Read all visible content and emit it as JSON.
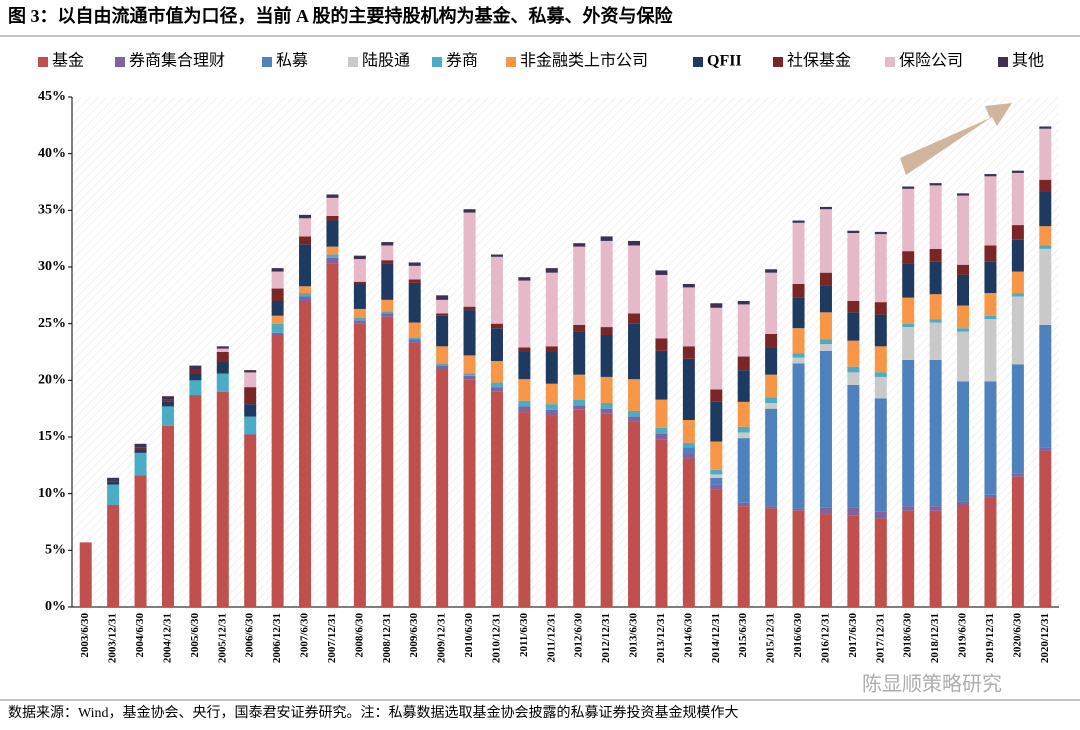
{
  "chart_data": {
    "type": "stacked-bar",
    "title": "图 3：以自由流通市值为口径，当前 A 股的主要持股机构为基金、私募、外资与保险",
    "source": "数据来源：Wind，基金协会、央行，国泰君安证券研究。注：私募数据选取基金协会披露的私募证券投资基金规模作大",
    "watermark": "陈显顺策略研究",
    "categories": [
      "2003/6/30",
      "2003/12/31",
      "2004/6/30",
      "2004/12/31",
      "2005/6/30",
      "2005/12/31",
      "2006/6/30",
      "2006/12/31",
      "2007/6/30",
      "2007/12/31",
      "2008/6/30",
      "2008/12/31",
      "2009/6/30",
      "2009/12/31",
      "2010/6/30",
      "2010/12/31",
      "2011/6/30",
      "2011/12/31",
      "2012/6/30",
      "2012/12/31",
      "2013/6/30",
      "2013/12/31",
      "2014/6/30",
      "2014/12/31",
      "2015/6/30",
      "2015/12/31",
      "2016/6/30",
      "2016/12/31",
      "2017/6/30",
      "2017/12/31",
      "2018/6/30",
      "2018/12/31",
      "2019/6/30",
      "2019/12/31",
      "2020/6/30",
      "2020/12/31"
    ],
    "series": [
      {
        "name": "基金",
        "color": "#c0504d",
        "values": [
          5.7,
          9.0,
          11.6,
          16.0,
          18.7,
          19.0,
          15.2,
          24.0,
          27.0,
          30.3,
          25.0,
          25.6,
          23.3,
          21.0,
          20.1,
          19.0,
          17.2,
          16.9,
          17.4,
          17.1,
          16.4,
          14.8,
          13.1,
          10.4,
          8.9,
          8.7,
          8.5,
          8.2,
          8.1,
          7.8,
          8.5,
          8.5,
          9.0,
          9.7,
          11.5,
          13.8
        ]
      },
      {
        "name": "券商集合理财",
        "color": "#8064a2",
        "values": [
          0,
          0,
          0,
          0,
          0,
          0,
          0.1,
          0.2,
          0.4,
          0.5,
          0.3,
          0.3,
          0.3,
          0.3,
          0.3,
          0.4,
          0.5,
          0.5,
          0.4,
          0.4,
          0.4,
          0.5,
          0.4,
          0.4,
          0.3,
          0.2,
          0.2,
          0.6,
          0.7,
          0.6,
          0.4,
          0.4,
          0.3,
          0.2,
          0.3,
          0.3
        ]
      },
      {
        "name": "私募",
        "color": "#4f81bd",
        "values": [
          0,
          0,
          0,
          0,
          0,
          0,
          0,
          0,
          0,
          0,
          0,
          0,
          0,
          0,
          0,
          0,
          0,
          0,
          0,
          0,
          0,
          0,
          0.6,
          0.6,
          5.7,
          8.6,
          12.8,
          13.8,
          10.8,
          10.0,
          12.9,
          12.9,
          10.6,
          10.0,
          9.6,
          10.8
        ]
      },
      {
        "name": "陆股通",
        "color": "#c9c9c9",
        "values": [
          0,
          0,
          0,
          0,
          0,
          0,
          0,
          0,
          0,
          0,
          0,
          0,
          0,
          0,
          0,
          0,
          0,
          0,
          0,
          0,
          0,
          0,
          0,
          0.3,
          0.5,
          0.5,
          0.5,
          0.6,
          1.1,
          1.9,
          2.9,
          3.3,
          4.4,
          5.5,
          6.0,
          6.7
        ]
      },
      {
        "name": "券商",
        "color": "#4bacc6",
        "values": [
          0,
          1.8,
          2.0,
          1.7,
          1.3,
          1.6,
          1.5,
          0.8,
          0.3,
          0.3,
          0.2,
          0.2,
          0.2,
          0.2,
          0.2,
          0.4,
          0.5,
          0.5,
          0.5,
          0.5,
          0.5,
          0.5,
          0.4,
          0.4,
          0.5,
          0.5,
          0.4,
          0.4,
          0.5,
          0.4,
          0.3,
          0.3,
          0.3,
          0.3,
          0.3,
          0.3
        ]
      },
      {
        "name": "非金融类上市公司",
        "color": "#f79646",
        "values": [
          0,
          0,
          0,
          0,
          0,
          0,
          0,
          0.7,
          0.6,
          0.7,
          0.8,
          1.0,
          1.3,
          1.5,
          1.6,
          1.9,
          1.9,
          1.8,
          2.2,
          2.3,
          2.8,
          2.5,
          2.0,
          2.5,
          2.2,
          2.0,
          2.2,
          2.4,
          2.3,
          2.3,
          2.3,
          2.2,
          2.0,
          2.0,
          1.9,
          1.7
        ]
      },
      {
        "name": "QFII",
        "color": "#1f3a60",
        "values": [
          0,
          0.3,
          0.3,
          0.4,
          0.6,
          1.1,
          1.1,
          1.3,
          3.7,
          2.3,
          2.2,
          3.2,
          3.5,
          2.7,
          4.0,
          2.9,
          2.4,
          2.8,
          3.8,
          3.7,
          4.9,
          4.3,
          5.4,
          3.5,
          2.8,
          2.4,
          2.7,
          2.4,
          2.5,
          2.8,
          3.0,
          2.9,
          2.7,
          2.8,
          2.8,
          3.1
        ]
      },
      {
        "name": "社保基金",
        "color": "#7b2626",
        "values": [
          0,
          0,
          0.2,
          0.2,
          0.4,
          0.8,
          1.5,
          1.1,
          0.7,
          0.4,
          0.2,
          0.3,
          0.3,
          0.2,
          0.3,
          0.4,
          0.4,
          0.5,
          0.6,
          0.7,
          0.9,
          1.1,
          1.1,
          1.1,
          1.2,
          1.2,
          1.2,
          1.1,
          1.0,
          1.1,
          1.1,
          1.1,
          0.9,
          1.4,
          1.3,
          1.0
        ]
      },
      {
        "name": "保险公司",
        "color": "#e6b9c8",
        "values": [
          0,
          0,
          0,
          0,
          0,
          0.3,
          1.3,
          1.5,
          1.6,
          1.6,
          2.0,
          1.3,
          1.2,
          1.2,
          8.3,
          5.9,
          5.9,
          6.5,
          6.9,
          7.6,
          6.0,
          5.6,
          5.2,
          7.2,
          4.6,
          5.4,
          5.4,
          5.6,
          6.0,
          6.0,
          5.5,
          5.6,
          6.1,
          6.1,
          4.6,
          4.5
        ]
      },
      {
        "name": "其他",
        "color": "#3f3151",
        "values": [
          0,
          0.3,
          0.3,
          0.3,
          0.3,
          0.2,
          0.2,
          0.3,
          0.3,
          0.3,
          0.3,
          0.3,
          0.3,
          0.4,
          0.3,
          0.2,
          0.3,
          0.4,
          0.3,
          0.4,
          0.4,
          0.4,
          0.3,
          0.4,
          0.3,
          0.3,
          0.2,
          0.2,
          0.2,
          0.2,
          0.2,
          0.2,
          0.2,
          0.2,
          0.2,
          0.2
        ]
      }
    ],
    "ylim": [
      0,
      45
    ],
    "yticks": [
      {
        "value": 0,
        "label": "0%"
      },
      {
        "value": 5,
        "label": "5%"
      },
      {
        "value": 10,
        "label": "10%"
      },
      {
        "value": 15,
        "label": "15%"
      },
      {
        "value": 20,
        "label": "20%"
      },
      {
        "value": 25,
        "label": "25%"
      },
      {
        "value": 30,
        "label": "30%"
      },
      {
        "value": 35,
        "label": "35%"
      },
      {
        "value": 40,
        "label": "40%"
      },
      {
        "value": 45,
        "label": "45%"
      }
    ]
  }
}
